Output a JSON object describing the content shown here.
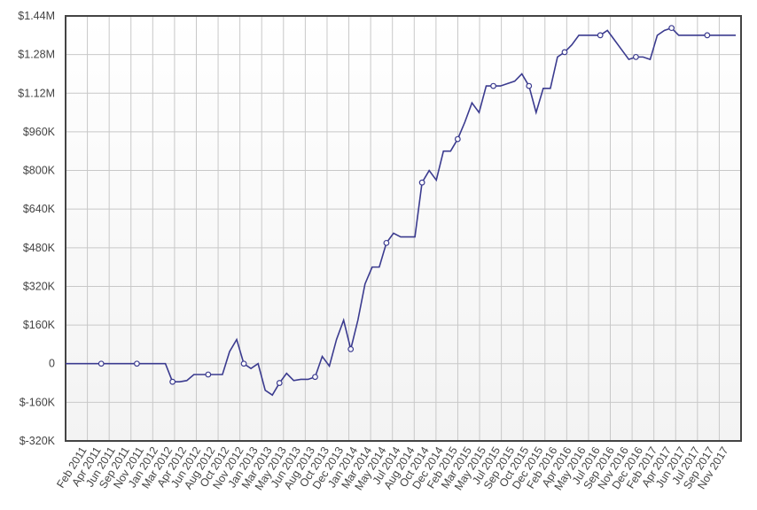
{
  "chart_data": {
    "type": "line",
    "categories": [
      null,
      null,
      null,
      "Feb 2011",
      null,
      "Apr 2011",
      null,
      "Jun 2011",
      null,
      "Sep 2011",
      null,
      "Nov 2011",
      null,
      "Jan 2012",
      null,
      "Mar 2012",
      null,
      "Apr 2012",
      null,
      "Jun 2012",
      null,
      "Aug 2012",
      null,
      "Oct 2012",
      null,
      "Nov 2012",
      null,
      "Jan 2013",
      null,
      "Mar 2013",
      null,
      "May 2013",
      null,
      "Jun 2013",
      null,
      "Aug 2013",
      null,
      "Oct 2013",
      null,
      "Dec 2013",
      null,
      "Jan 2014",
      null,
      "Mar 2014",
      null,
      "May 2014",
      null,
      "Jul 2014",
      null,
      "Aug 2014",
      null,
      "Oct 2014",
      null,
      "Dec 2014",
      null,
      "Feb 2015",
      null,
      "Mar 2015",
      null,
      "May 2015",
      null,
      "Jul 2015",
      null,
      "Sep 2015",
      null,
      "Oct 2015",
      null,
      "Dec 2015",
      null,
      "Feb 2016",
      null,
      "Apr 2016",
      null,
      "May 2016",
      null,
      "Jul 2016",
      null,
      "Sep 2016",
      null,
      "Nov 2016",
      null,
      "Dec 2016",
      null,
      "Feb 2017",
      null,
      "Apr 2017",
      null,
      "Jun 2017",
      null,
      "Jul 2017",
      null,
      "Sep 2017",
      null,
      "Nov 2017",
      null
    ],
    "series": [
      {
        "color": "#3b3b8f",
        "values": [
          0,
          0,
          0,
          0,
          0,
          0,
          0,
          0,
          0,
          0,
          0,
          0,
          0,
          0,
          0,
          -75000,
          -75000,
          -70000,
          -45000,
          -45000,
          -45000,
          -45000,
          -45000,
          50000,
          100000,
          0,
          -20000,
          0,
          -110000,
          -130000,
          -80000,
          -40000,
          -70000,
          -65000,
          -65000,
          -55000,
          30000,
          -10000,
          100000,
          180000,
          60000,
          180000,
          330000,
          400000,
          400000,
          500000,
          540000,
          525000,
          525000,
          525000,
          750000,
          800000,
          760000,
          880000,
          880000,
          930000,
          1000000,
          1080000,
          1040000,
          1150000,
          1150000,
          1150000,
          1160000,
          1170000,
          1200000,
          1150000,
          1040000,
          1140000,
          1140000,
          1270000,
          1290000,
          1320000,
          1360000,
          1360000,
          1360000,
          1360000,
          1380000,
          1340000,
          1300000,
          1260000,
          1270000,
          1270000,
          1260000,
          1360000,
          1380000,
          1390000,
          1360000,
          1360000,
          1360000,
          1360000,
          1360000,
          1360000,
          1360000,
          1360000,
          1360000
        ]
      }
    ],
    "ylim": [
      -320000,
      1440000
    ],
    "yticks": [
      {
        "value": -320000,
        "label": "$-320K"
      },
      {
        "value": -160000,
        "label": "$-160K"
      },
      0,
      {
        "value": 160000,
        "label": "$160K"
      },
      {
        "value": 320000,
        "label": "$320K"
      },
      {
        "value": 480000,
        "label": "$480K"
      },
      {
        "value": 640000,
        "label": "$640K"
      },
      {
        "value": 800000,
        "label": "$800K"
      },
      {
        "value": 960000,
        "label": "$960K"
      },
      {
        "value": 1120000,
        "label": "$1.12M"
      },
      {
        "value": 1280000,
        "label": "$1.28M"
      },
      {
        "value": 1440000,
        "label": "$1.44M"
      }
    ],
    "grid": true
  }
}
